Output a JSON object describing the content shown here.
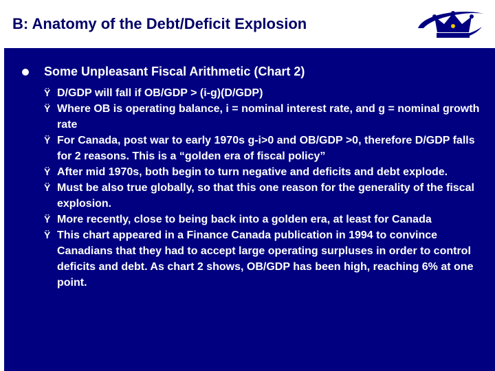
{
  "slide": {
    "title": "B: Anatomy of the Debt/Deficit Explosion"
  },
  "logo": {
    "icon": "crown-logo",
    "colors": {
      "crown": "#000080",
      "swoosh": "#000080",
      "jewel": "#e8c800"
    }
  },
  "main": {
    "heading": "Some Unpleasant Fiscal Arithmetic (Chart 2)",
    "bullet_marker": "l",
    "sub_marker": "Ÿ",
    "items": [
      {
        "text": "D/GDP will fall if OB/GDP > (i-g)(D/GDP)"
      },
      {
        "text": "Where OB is operating balance, i = nominal interest rate, and g = nominal growth rate"
      },
      {
        "text": "For Canada, post war to early 1970s g-i>0 and OB/GDP >0, therefore D/GDP falls for 2 reasons. This is a “golden era of fiscal policy”"
      },
      {
        "text": "After mid 1970s, both begin to turn negative and deficits and debt explode."
      },
      {
        "text": "Must be also true globally, so that this one reason for the generality of the fiscal explosion."
      },
      {
        "text": "More recently, close to being back into a golden era, at least for Canada"
      },
      {
        "text": "This chart appeared in a Finance Canada publication in 1994 to convince Canadians that they had to accept large operating surpluses in order to control deficits and debt. As chart 2 shows, OB/GDP has been high, reaching 6% at one point."
      }
    ]
  },
  "colors": {
    "background": "#000080",
    "title_text": "#000066",
    "body_text": "#ffffff"
  }
}
